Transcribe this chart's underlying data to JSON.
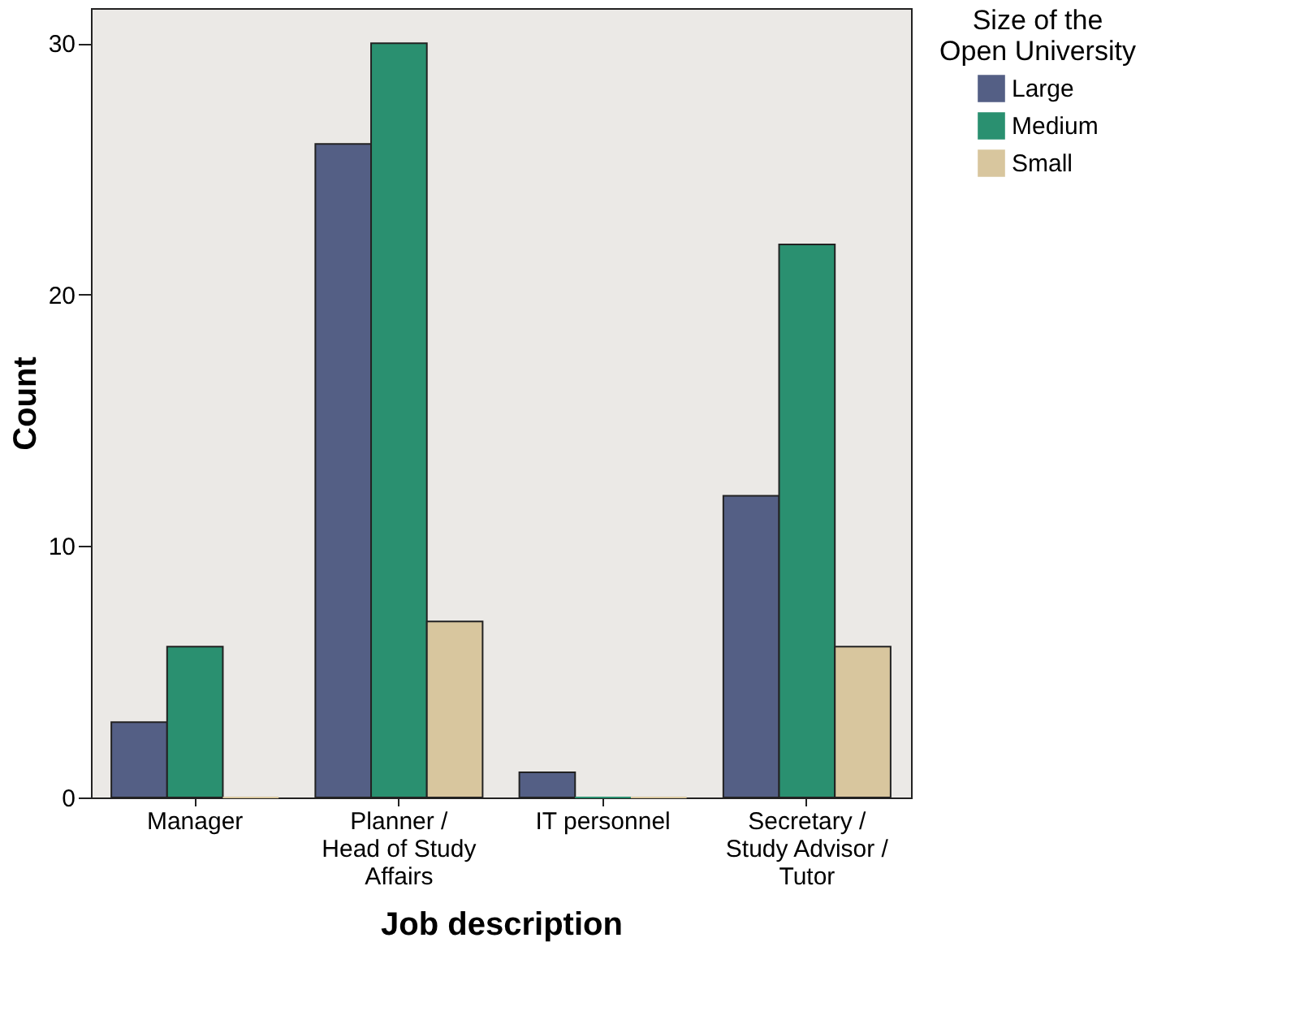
{
  "chart_data": {
    "type": "bar",
    "xlabel": "Job description",
    "ylabel": "Count",
    "legend_title": "Size of the Open University",
    "legend": "top right",
    "grid": false,
    "categories": [
      "Manager",
      "Planner / Head of Study Affairs",
      "IT personnel",
      "Secretary / Study Advisor / Tutor"
    ],
    "series": [
      {
        "name": "Large",
        "color": "#545f85",
        "values": [
          3,
          26,
          1,
          12
        ]
      },
      {
        "name": "Medium",
        "color": "#2a9070",
        "values": [
          6,
          30,
          0,
          22
        ]
      },
      {
        "name": "Small",
        "color": "#d8c69e",
        "values": [
          0,
          7,
          0,
          6
        ]
      }
    ],
    "ylim": [
      0,
      31.4
    ],
    "yticks": [
      0,
      10,
      20,
      30
    ]
  }
}
